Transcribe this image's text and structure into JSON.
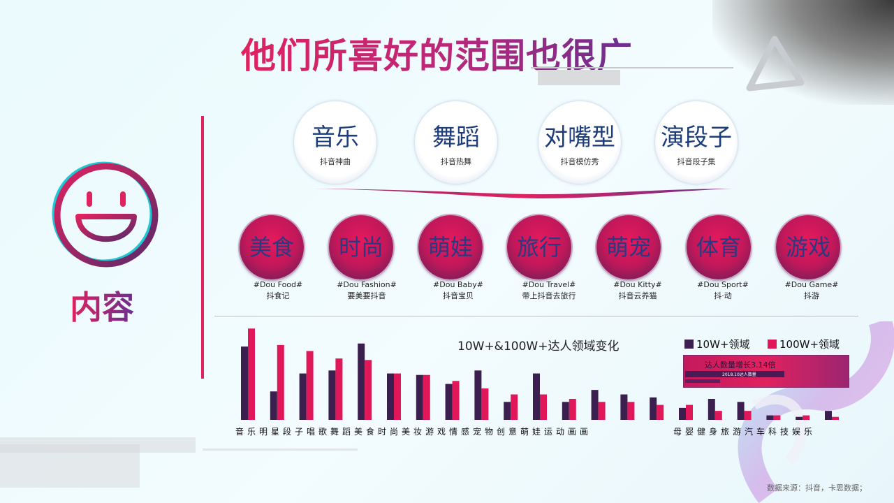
{
  "title": "他们所喜好的范围也很广",
  "content_label": "内容",
  "top_categories": [
    {
      "main": "音乐",
      "sub": "抖音神曲"
    },
    {
      "main": "舞蹈",
      "sub": "抖音热舞"
    },
    {
      "main": "对嘴型",
      "sub": "抖音模仿秀"
    },
    {
      "main": "演段子",
      "sub": "抖音段子集"
    }
  ],
  "categories": [
    {
      "name": "美食",
      "tag": "#Dou Food#",
      "sub": "抖食记"
    },
    {
      "name": "时尚",
      "tag": "#Dou Fashion#",
      "sub": "要美要抖音"
    },
    {
      "name": "萌娃",
      "tag": "#Dou Baby#",
      "sub": "抖音宝贝"
    },
    {
      "name": "旅行",
      "tag": "#Dou Travel#",
      "sub": "带上抖音去旅行"
    },
    {
      "name": "萌宠",
      "tag": "#Dou Kitty#",
      "sub": "抖音云养猫"
    },
    {
      "name": "体育",
      "tag": "#Dou Sport#",
      "sub": "抖·动"
    },
    {
      "name": "游戏",
      "tag": "#Dou Game#",
      "sub": "抖游"
    }
  ],
  "x_labels_left": "音乐明星段子唱歌舞蹈美食时尚美妆游戏情感宠物创意萌娃运动画画",
  "x_labels_right": "母婴健身旅游汽车科技娱乐",
  "growth_box": {
    "title": "达人数量增长3.14倍",
    "note": "2018.10达人数量"
  },
  "source": "数据来源：抖音，卡思数据；",
  "colors": {
    "series1": "#3b1f4f",
    "series2": "#e0185a",
    "accent": "#e0225f"
  },
  "chart_data": {
    "type": "bar",
    "title": "10W+&100W+达人领域变化",
    "series": [
      {
        "name": "10W+领域",
        "values": [
          49,
          19,
          31,
          33,
          51,
          31,
          30,
          24,
          33,
          12,
          31,
          12,
          20,
          17,
          15,
          8,
          14,
          12,
          3,
          2,
          6
        ]
      },
      {
        "name": "100W+领域",
        "values": [
          61,
          50,
          46,
          41,
          40,
          31,
          30,
          26,
          21,
          17,
          17,
          14,
          12,
          12,
          10,
          10,
          6,
          6,
          3,
          3,
          2
        ]
      }
    ],
    "categories": [
      "音乐",
      "明星",
      "段子",
      "唱歌",
      "舞蹈",
      "美食",
      "时尚",
      "美妆",
      "游戏",
      "情感",
      "宠物",
      "创意",
      "萌娃",
      "运动",
      "画画",
      "母婴",
      "健身",
      "旅游",
      "汽车",
      "科技",
      "娱乐"
    ],
    "ylim": [
      0,
      70
    ],
    "grid": false,
    "legend": "top-right"
  }
}
